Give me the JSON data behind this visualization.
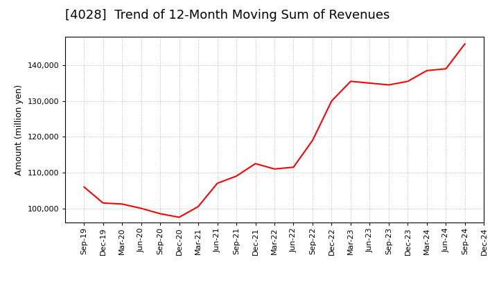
{
  "title": "[4028]  Trend of 12-Month Moving Sum of Revenues",
  "ylabel": "Amount (million yen)",
  "line_color": "#ff0000",
  "background_color": "#ffffff",
  "plot_bg_color": "#ffffff",
  "grid_color": "#999999",
  "x_labels": [
    "Sep-19",
    "Dec-19",
    "Mar-20",
    "Jun-20",
    "Sep-20",
    "Dec-20",
    "Mar-21",
    "Jun-21",
    "Sep-21",
    "Dec-21",
    "Mar-22",
    "Jun-22",
    "Sep-22",
    "Dec-22",
    "Mar-23",
    "Jun-23",
    "Sep-23",
    "Dec-23",
    "Mar-24",
    "Jun-24",
    "Sep-24",
    "Dec-24"
  ],
  "values": [
    106000,
    101500,
    101200,
    100000,
    98500,
    97500,
    100500,
    107000,
    109000,
    112500,
    111000,
    111500,
    119000,
    130000,
    135500,
    135000,
    134500,
    135500,
    138500,
    139000,
    146000,
    null
  ],
  "ylim_min": 96000,
  "ylim_max": 148000,
  "yticks": [
    100000,
    110000,
    120000,
    130000,
    140000
  ],
  "line_width": 1.5,
  "title_fontsize": 13,
  "tick_fontsize": 8,
  "ylabel_fontsize": 9
}
